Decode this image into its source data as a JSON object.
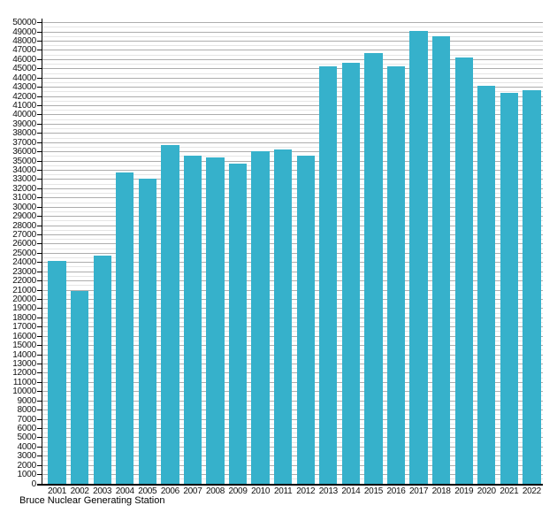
{
  "footer": {
    "label": "Bruce Nuclear Generating Station"
  },
  "colors": {
    "bar": "#36b1cb",
    "major_gridline": "#adadad",
    "minor_gridline": "#e5e5e5",
    "axis": "#000000",
    "background": "#ffffff",
    "text": "#111111"
  },
  "chart_data": {
    "type": "bar",
    "title": "Bruce Nuclear Generating Station",
    "title_position": "bottom-left",
    "xlabel": "",
    "ylabel": "",
    "categories": [
      "2001",
      "2002",
      "2003",
      "2004",
      "2005",
      "2006",
      "2007",
      "2008",
      "2009",
      "2010",
      "2011",
      "2012",
      "2013",
      "2014",
      "2015",
      "2016",
      "2017",
      "2018",
      "2019",
      "2020",
      "2021",
      "2022"
    ],
    "values": [
      24200,
      20900,
      24700,
      33800,
      33100,
      36700,
      35600,
      35400,
      34700,
      36100,
      36300,
      35600,
      45300,
      45700,
      46700,
      45300,
      49100,
      48500,
      46200,
      43200,
      42400,
      42700
    ],
    "ylim": [
      0,
      50000
    ],
    "y_label_interval": 1000,
    "y_major_gridline_interval": 1000,
    "y_minor_gridline_interval": 500,
    "grid": true,
    "legend": false,
    "bar_color": "#36b1cb"
  }
}
